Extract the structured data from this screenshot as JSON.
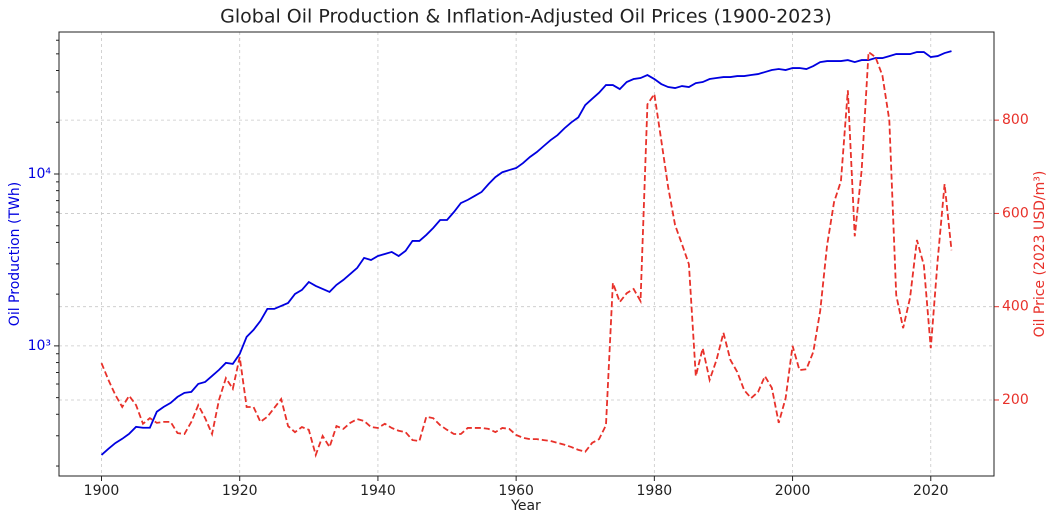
{
  "chart_data": {
    "type": "line",
    "title": "Global Oil Production & Inflation-Adjusted Oil Prices (1900-2023)",
    "xlabel": "Year",
    "ylabel": "Oil Production (TWh)",
    "y2label": "Oil Price (2023 USD/m³)",
    "x": [
      1900,
      1901,
      1902,
      1903,
      1904,
      1905,
      1906,
      1907,
      1908,
      1909,
      1910,
      1911,
      1912,
      1913,
      1914,
      1915,
      1916,
      1917,
      1918,
      1919,
      1920,
      1921,
      1922,
      1923,
      1924,
      1925,
      1926,
      1927,
      1928,
      1929,
      1930,
      1931,
      1932,
      1933,
      1934,
      1935,
      1936,
      1937,
      1938,
      1939,
      1940,
      1941,
      1942,
      1943,
      1944,
      1945,
      1946,
      1947,
      1948,
      1949,
      1950,
      1951,
      1952,
      1953,
      1954,
      1955,
      1956,
      1957,
      1958,
      1959,
      1960,
      1961,
      1962,
      1963,
      1964,
      1965,
      1966,
      1967,
      1968,
      1969,
      1970,
      1971,
      1972,
      1973,
      1974,
      1975,
      1976,
      1977,
      1978,
      1979,
      1980,
      1981,
      1982,
      1983,
      1984,
      1985,
      1986,
      1987,
      1988,
      1989,
      1990,
      1991,
      1992,
      1993,
      1994,
      1995,
      1996,
      1997,
      1998,
      1999,
      2000,
      2001,
      2002,
      2003,
      2004,
      2005,
      2006,
      2007,
      2008,
      2009,
      2010,
      2011,
      2012,
      2013,
      2014,
      2015,
      2016,
      2017,
      2018,
      2019,
      2020,
      2021,
      2022,
      2023
    ],
    "series": [
      {
        "name": "Oil Production (TWh)",
        "color": "#0000e0",
        "dashed": false,
        "values": [
          232,
          252,
          272,
          288,
          308,
          338,
          334,
          334,
          414,
          442,
          466,
          505,
          533,
          540,
          601,
          617,
          669,
          725,
          797,
          786,
          898,
          1128,
          1239,
          1397,
          1641,
          1641,
          1708,
          1777,
          2006,
          2115,
          2354,
          2233,
          2145,
          2060,
          2263,
          2420,
          2622,
          2842,
          3249,
          3161,
          3333,
          3425,
          3520,
          3333,
          3570,
          4080,
          4080,
          4420,
          4850,
          5400,
          5400,
          6010,
          6770,
          7070,
          7450,
          7860,
          8730,
          9590,
          10240,
          10540,
          10830,
          11580,
          12560,
          13420,
          14550,
          15760,
          16850,
          18460,
          19990,
          21360,
          25190,
          27360,
          29700,
          32920,
          32920,
          31190,
          34270,
          35680,
          36160,
          37640,
          35680,
          33370,
          32060,
          31620,
          32480,
          32060,
          33810,
          34270,
          35680,
          36160,
          36640,
          36640,
          37130,
          37130,
          37640,
          38140,
          39180,
          40250,
          40790,
          40250,
          41340,
          41340,
          40790,
          42460,
          44790,
          45390,
          45390,
          45390,
          46000,
          44790,
          46000,
          46000,
          47250,
          47250,
          48530,
          49860,
          49860,
          49860,
          51220,
          51220,
          47890,
          48530,
          50530,
          51890
        ]
      },
      {
        "name": "Oil Price (2023 USD/m³)",
        "color": "#e8312a",
        "dashed": true,
        "axis": "y2",
        "values": [
          279,
          243,
          211,
          185,
          209,
          189,
          149,
          161,
          151,
          153,
          153,
          129,
          127,
          153,
          189,
          161,
          127,
          200,
          247,
          224,
          292,
          185,
          185,
          153,
          164,
          183,
          202,
          144,
          131,
          142,
          136,
          82,
          123,
          99,
          144,
          138,
          151,
          159,
          155,
          142,
          140,
          149,
          140,
          134,
          131,
          114,
          112,
          164,
          161,
          146,
          136,
          127,
          127,
          140,
          140,
          140,
          138,
          131,
          140,
          138,
          125,
          119,
          116,
          116,
          114,
          112,
          108,
          104,
          99,
          93,
          89,
          108,
          116,
          146,
          451,
          410,
          429,
          438,
          412,
          834,
          856,
          757,
          656,
          575,
          534,
          491,
          251,
          311,
          243,
          286,
          344,
          286,
          260,
          221,
          204,
          217,
          251,
          226,
          151,
          204,
          316,
          264,
          266,
          303,
          391,
          532,
          624,
          669,
          864,
          551,
          693,
          946,
          935,
          896,
          800,
          425,
          354,
          419,
          543,
          489,
          311,
          500,
          663,
          521
        ]
      }
    ],
    "xlim": [
      1893.85,
      2029.15
    ],
    "xticks": [
      1900,
      1920,
      1940,
      1960,
      1980,
      2000,
      2020
    ],
    "ylim": [
      175,
      67000
    ],
    "ylog": true,
    "yticks": [
      {
        "value": 1000,
        "label": "10³"
      },
      {
        "value": 10000,
        "label": "10⁴"
      }
    ],
    "yminorticks": [
      200,
      300,
      400,
      500,
      600,
      700,
      800,
      900,
      2000,
      3000,
      4000,
      5000,
      6000,
      7000,
      8000,
      9000,
      20000,
      30000,
      40000,
      50000,
      60000
    ],
    "y2lim": [
      37,
      989
    ],
    "y2ticks": [
      200,
      400,
      600,
      800
    ],
    "grid": true
  }
}
